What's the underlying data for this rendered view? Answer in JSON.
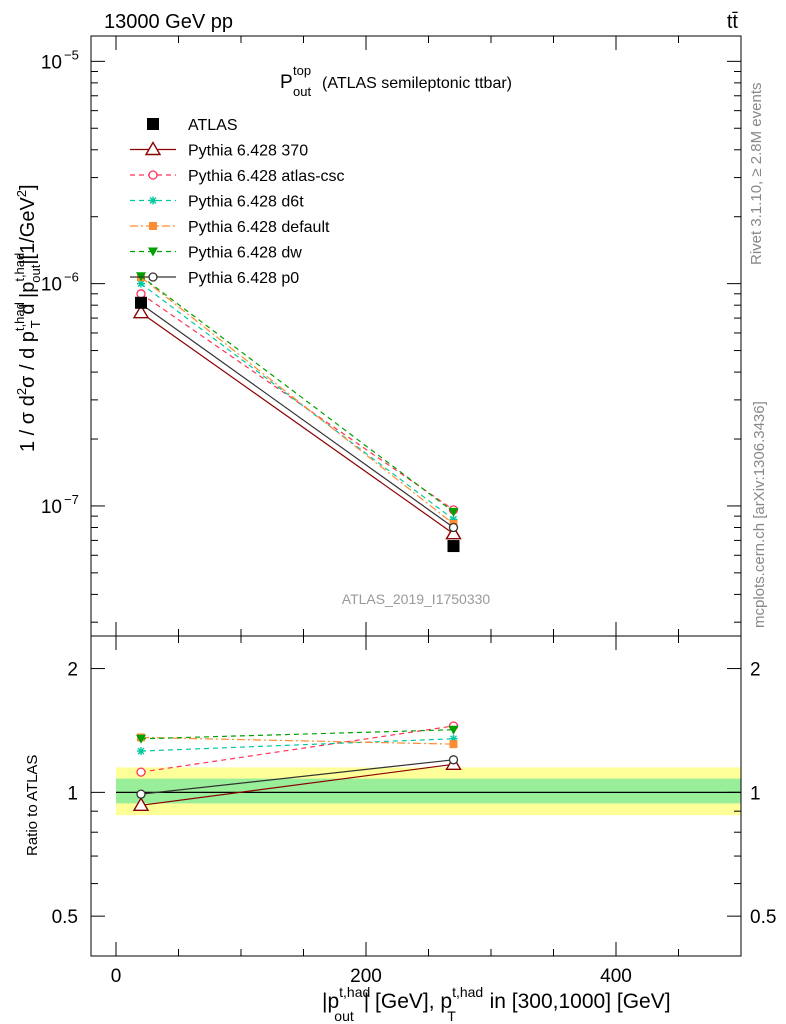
{
  "header": {
    "energy_label": "13000 GeV pp",
    "process_label": "tt̄",
    "plot_title_main": "P",
    "plot_title_sup": "top",
    "plot_title_sub": "out",
    "plot_title_rest": "(ATLAS semileptonic ttbar)",
    "analysis_id": "ATLAS_2019_I1750330"
  },
  "side_labels": {
    "rivet": "Rivet 3.1.10, ≥ 2.8M events",
    "mcplots": "mcplots.cern.ch [arXiv:1306.3436]"
  },
  "axes": {
    "ylabel_main": "1 / σ d²σ / d pT d |pout| [1/GeV²]",
    "ylabel_ratio": "Ratio to ATLAS",
    "xlabel": "|pout t,had| [GeV], pT t,had in [300,1000] [GeV]",
    "main_yticks": [
      {
        "value": 1e-07,
        "base": "10",
        "exp": "−7"
      },
      {
        "value": 1e-06,
        "base": "10",
        "exp": "−6"
      },
      {
        "value": 1e-05,
        "base": "10",
        "exp": "−5"
      }
    ],
    "ratio_yticks": [
      {
        "value": 0.5,
        "label": "0.5"
      },
      {
        "value": 1,
        "label": "1"
      },
      {
        "value": 2,
        "label": "2"
      }
    ],
    "xticks": [
      {
        "value": 0,
        "label": "0"
      },
      {
        "value": 200,
        "label": "200"
      },
      {
        "value": 400,
        "label": "400"
      }
    ]
  },
  "chart_data": {
    "type": "line",
    "log_y": true,
    "xlim": [
      -20,
      500
    ],
    "ylim": [
      2.6e-08,
      1.3e-05
    ],
    "ratio_ylim": [
      0.4,
      2.4
    ],
    "x": [
      20,
      270
    ],
    "reference": {
      "name": "ATLAS",
      "values": [
        8.2e-07,
        6.6e-08
      ],
      "ratio_band_inner": [
        0.94,
        1.08
      ],
      "ratio_band_outer": [
        0.88,
        1.15
      ]
    },
    "series": [
      {
        "name": "Pythia 6.428 370",
        "values": [
          7.4e-07,
          7.5e-08
        ],
        "ratio": [
          0.93,
          1.17
        ],
        "color": "#8b0000",
        "marker": "open-triangle",
        "dash": "solid"
      },
      {
        "name": "Pythia 6.428 atlas-csc",
        "values": [
          9e-07,
          9.6e-08
        ],
        "ratio": [
          1.12,
          1.45
        ],
        "color": "#ff3355",
        "marker": "open-circle",
        "dash": "dashed"
      },
      {
        "name": "Pythia 6.428 d6t",
        "values": [
          1e-06,
          8.7e-08
        ],
        "ratio": [
          1.26,
          1.35
        ],
        "color": "#00c9a0",
        "marker": "star",
        "dash": "dashed"
      },
      {
        "name": "Pythia 6.428 default",
        "values": [
          1.07e-06,
          8.3e-08
        ],
        "ratio": [
          1.36,
          1.31
        ],
        "color": "#ff8c33",
        "marker": "filled-square",
        "dash": "dashdot"
      },
      {
        "name": "Pythia 6.428 dw",
        "values": [
          1.08e-06,
          9.4e-08
        ],
        "ratio": [
          1.35,
          1.42
        ],
        "color": "#00a000",
        "marker": "filled-triangle-down",
        "dash": "dashed"
      },
      {
        "name": "Pythia 6.428 p0",
        "values": [
          8.1e-07,
          8e-08
        ],
        "ratio": [
          0.99,
          1.2
        ],
        "color": "#333333",
        "marker": "open-circle",
        "dash": "solid"
      }
    ],
    "legend_position": "top-left"
  }
}
